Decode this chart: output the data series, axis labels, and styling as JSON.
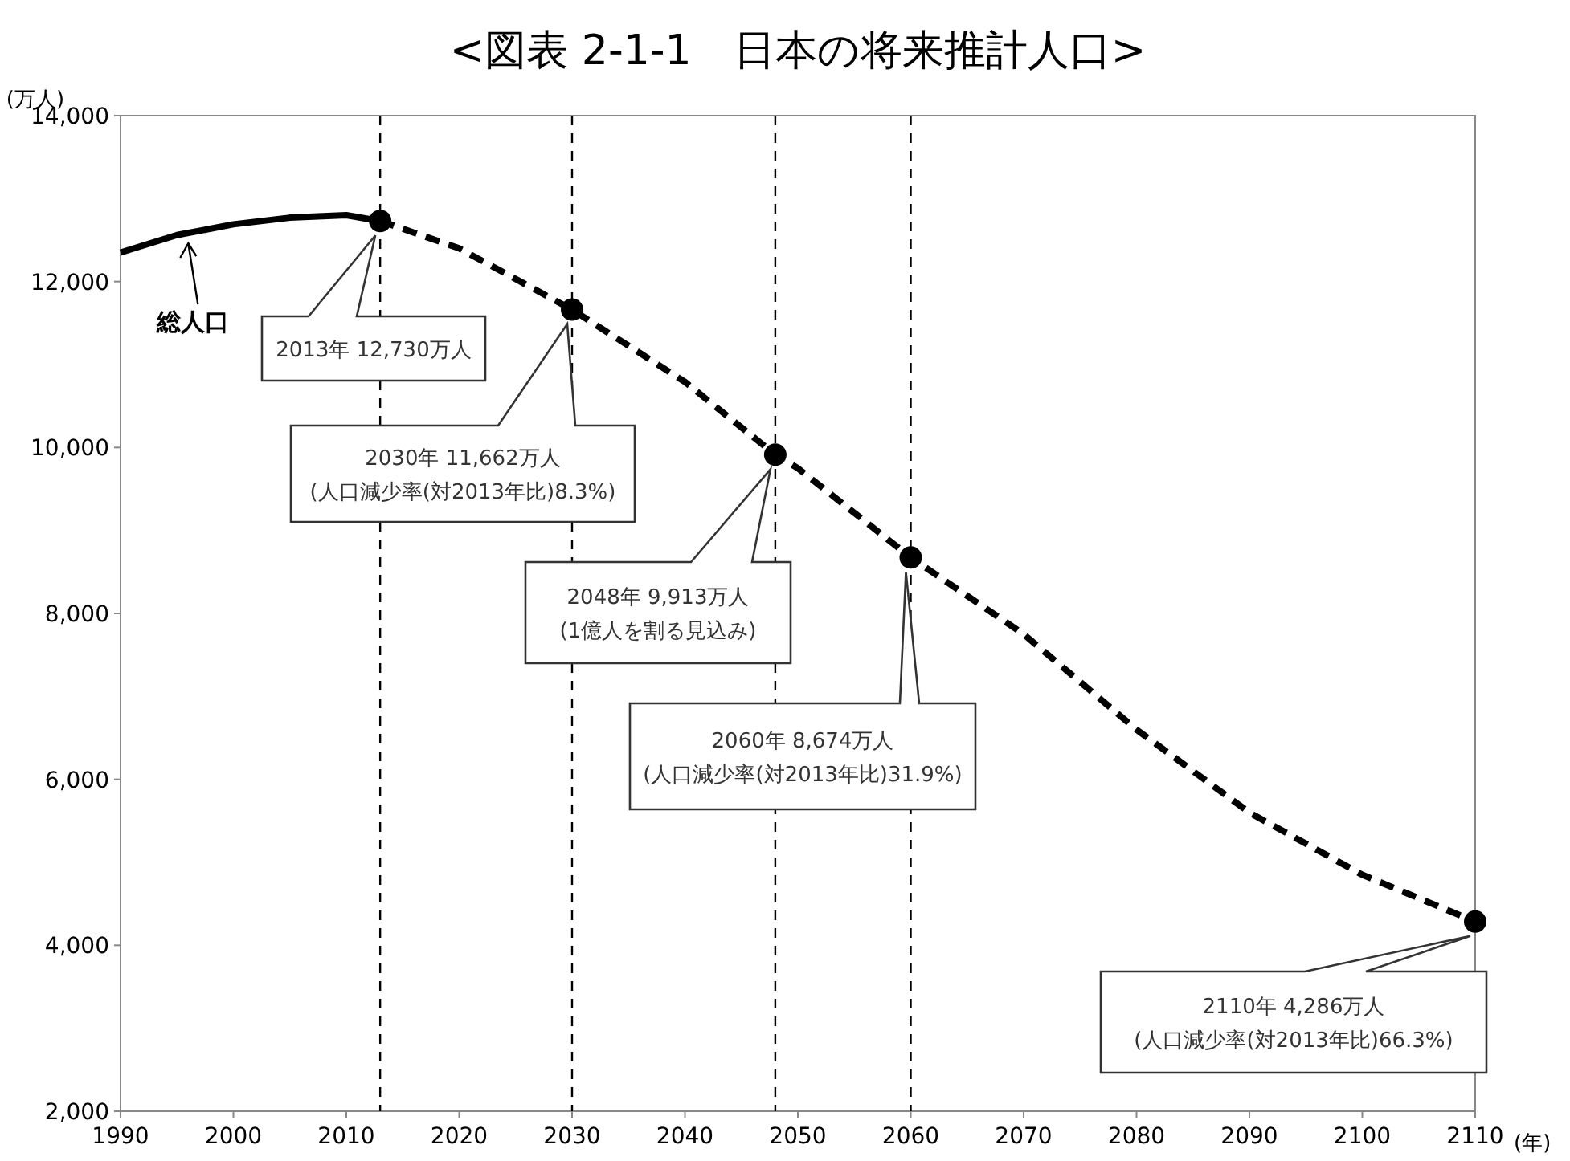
{
  "chart_data": {
    "type": "line",
    "title": "<図表 2-1-1　日本の将来推計人口>",
    "ylabel": "(万人)",
    "xlabel": "(年)",
    "xlim": [
      1990,
      2110
    ],
    "xticks": [
      1990,
      2000,
      2010,
      2020,
      2030,
      2040,
      2050,
      2060,
      2070,
      2080,
      2090,
      2100,
      2110
    ],
    "ylim": [
      2000,
      14000
    ],
    "yticks": [
      {
        "value": 2000,
        "label": "2,000"
      },
      {
        "value": 4000,
        "label": "4,000"
      },
      {
        "value": 6000,
        "label": "6,000"
      },
      {
        "value": 8000,
        "label": "8,000"
      },
      {
        "value": 10000,
        "label": "10,000"
      },
      {
        "value": 12000,
        "label": "12,000"
      },
      {
        "value": 14000,
        "label": "14,000"
      }
    ],
    "grid": false,
    "series": [
      {
        "color": "#000000",
        "line_style": "solid",
        "x": [
          1990,
          1995,
          2000,
          2005,
          2010,
          2013
        ],
        "values": [
          12350,
          12560,
          12690,
          12770,
          12800,
          12730
        ]
      },
      {
        "color": "#000000",
        "line_style": "dashed",
        "x": [
          2013,
          2020,
          2030,
          2040,
          2048,
          2050,
          2060,
          2070,
          2080,
          2090,
          2100,
          2110
        ],
        "values": [
          12730,
          12400,
          11662,
          10790,
          9913,
          9750,
          8674,
          7750,
          6600,
          5600,
          4850,
          4286
        ]
      },
      {
        "type": "scatter",
        "color": "#000000",
        "marker": "circle",
        "x": [
          2013,
          2030,
          2048,
          2060,
          2110
        ],
        "values": [
          12730,
          11662,
          9913,
          8674,
          4286
        ]
      }
    ],
    "ref_lines": [
      {
        "axis": "x",
        "value": 2013,
        "color": "#000000",
        "line_style": "dashed"
      },
      {
        "axis": "x",
        "value": 2030,
        "color": "#000000",
        "line_style": "dashed"
      },
      {
        "axis": "x",
        "value": 2048,
        "color": "#000000",
        "line_style": "dashed"
      },
      {
        "axis": "x",
        "value": 2060,
        "color": "#000000",
        "line_style": "dashed"
      }
    ],
    "annotations": [
      {
        "text": "総人口",
        "x": 1996,
        "y": 12500
      },
      "2013年 12,730万人",
      "2030年 11,662万人\n(人口減少率(対2013年比)8.3%)",
      "2048年 9,913万人\n(1億人を割る見込み)",
      "2060年 8,674万人\n(人口減少率(対2013年比)31.9%)",
      "2110年 4,286万人\n(人口減少率(対2013年比)66.3%)"
    ]
  }
}
